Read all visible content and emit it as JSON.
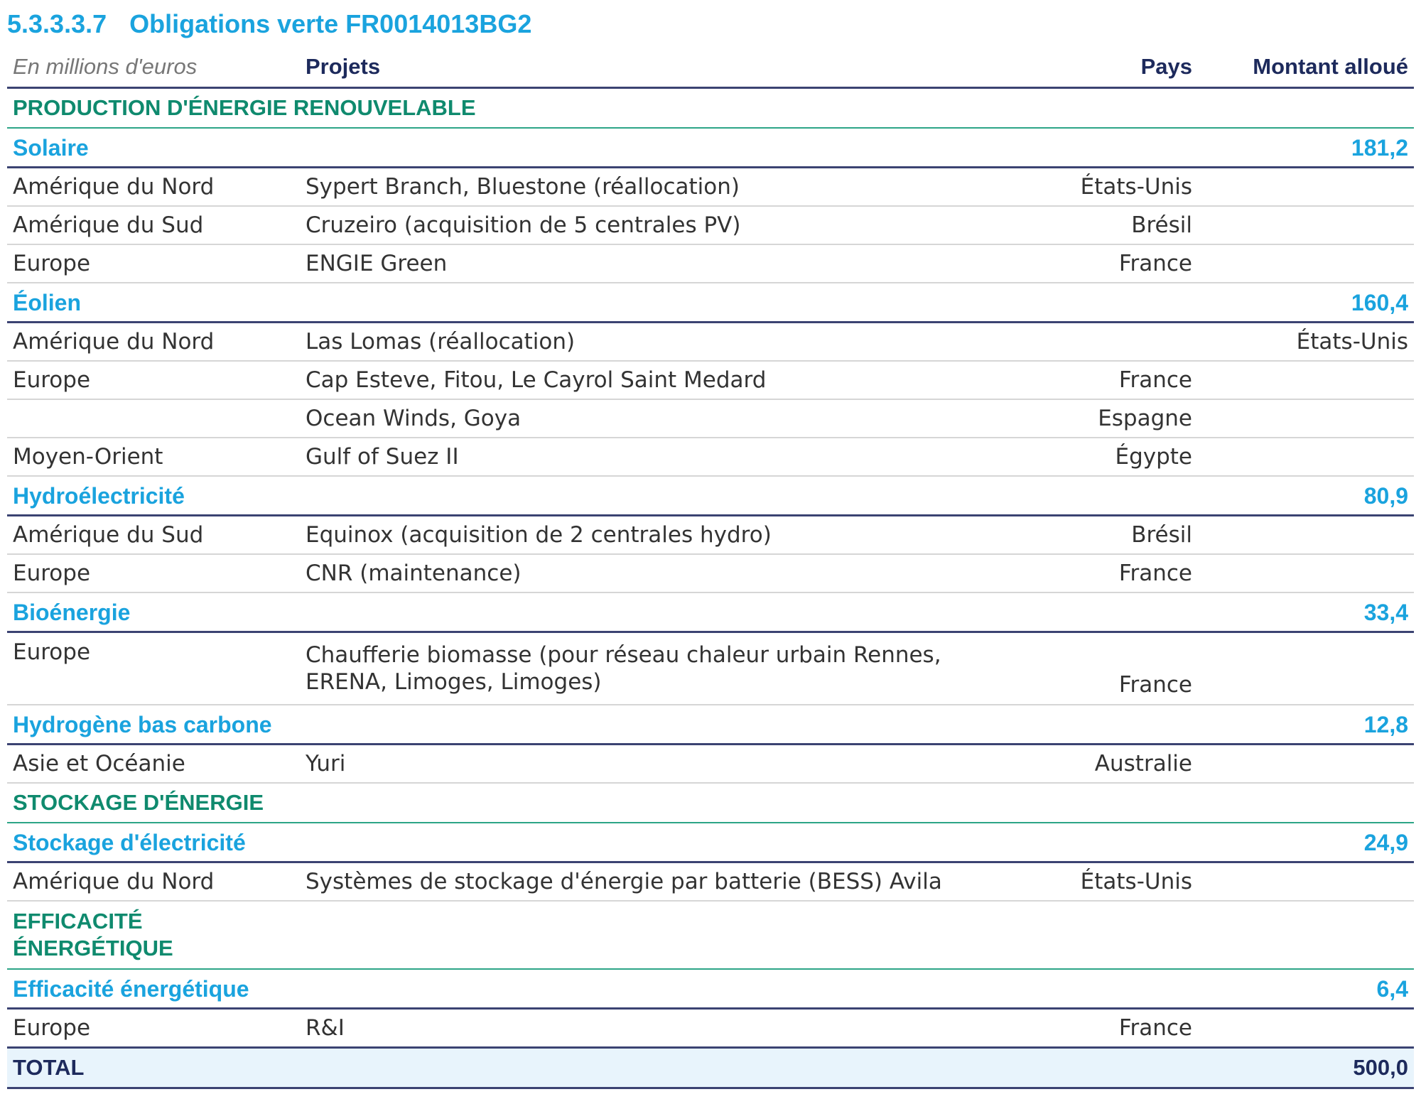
{
  "heading": {
    "number": "5.3.3.3.7",
    "title": "Obligations verte FR0014013BG2"
  },
  "columns": {
    "unit": "En millions d'euros",
    "projects": "Projets",
    "country": "Pays",
    "amount": "Montant alloué"
  },
  "sections": [
    {
      "label": "PRODUCTION D'ÉNERGIE RENOUVELABLE",
      "categories": [
        {
          "label": "Solaire",
          "amount": "181,2",
          "rows": [
            {
              "region": "Amérique du Nord",
              "project": "Sypert Branch, Bluestone (réallocation)",
              "country": "États-Unis"
            },
            {
              "region": "Amérique du Sud",
              "project": "Cruzeiro (acquisition de 5 centrales PV)",
              "country": "Brésil"
            },
            {
              "region": "Europe",
              "project": "ENGIE Green",
              "country": "France"
            }
          ]
        },
        {
          "label": "Éolien",
          "amount": "160,4",
          "rows": [
            {
              "region": "Amérique du Nord",
              "project": "Las Lomas (réallocation)",
              "country": "",
              "amount_col": "États-Unis"
            },
            {
              "region": "Europe",
              "project": "Cap Esteve, Fitou, Le Cayrol Saint Medard",
              "country": "France"
            },
            {
              "region": "",
              "project": "Ocean Winds, Goya",
              "country": "Espagne"
            },
            {
              "region": "Moyen-Orient",
              "project": "Gulf of Suez II",
              "country": "Égypte"
            }
          ]
        },
        {
          "label": "Hydroélectricité",
          "amount": "80,9",
          "rows": [
            {
              "region": "Amérique du Sud",
              "project": "Equinox (acquisition de 2 centrales hydro)",
              "country": "Brésil"
            },
            {
              "region": "Europe",
              "project": "CNR (maintenance)",
              "country": "France"
            }
          ]
        },
        {
          "label": "Bioénergie",
          "amount": "33,4",
          "rows": [
            {
              "region": "Europe",
              "project_line1": "Chaufferie biomasse (pour réseau chaleur urbain Rennes,",
              "project_line2": "ERENA, Limoges, Limoges)",
              "country": "France"
            }
          ]
        },
        {
          "label": "Hydrogène bas carbone",
          "amount": "12,8",
          "rows": [
            {
              "region": "Asie et Océanie",
              "project": "Yuri",
              "country": "Australie"
            }
          ]
        }
      ]
    },
    {
      "label": "STOCKAGE D'ÉNERGIE",
      "categories": [
        {
          "label": "Stockage d'électricité",
          "amount": "24,9",
          "rows": [
            {
              "region": "Amérique du Nord",
              "project": "Systèmes de stockage d'énergie par batterie (BESS) Avila",
              "country": "États-Unis"
            }
          ]
        }
      ]
    },
    {
      "label_line1": "EFFICACITÉ",
      "label_line2": "ÉNERGÉTIQUE",
      "categories": [
        {
          "label": "Efficacité énergétique",
          "amount": "6,4",
          "rows": [
            {
              "region": "Europe",
              "project": "R&I",
              "country": "France"
            }
          ]
        }
      ]
    }
  ],
  "total": {
    "label": "TOTAL",
    "amount": "500,0"
  }
}
